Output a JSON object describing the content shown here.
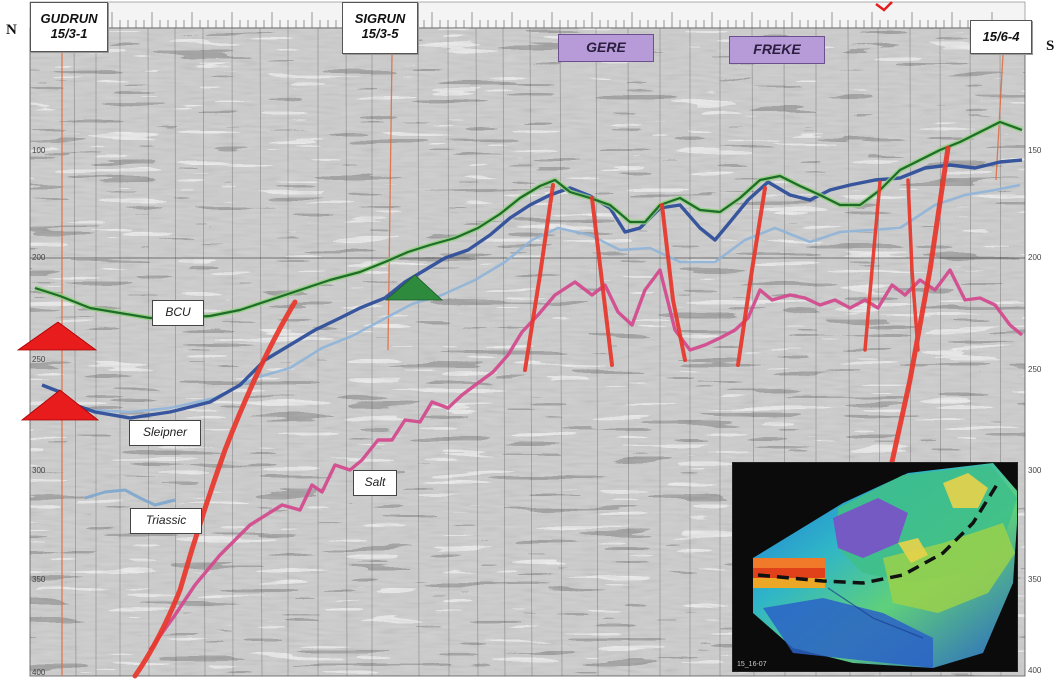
{
  "compass": {
    "north": "N",
    "south": "S"
  },
  "wells": [
    {
      "name": "GUDRUN",
      "id": "15/3-1"
    },
    {
      "name": "SIGRUN",
      "id": "15/3-5"
    },
    {
      "name": "",
      "id": "15/6-4"
    }
  ],
  "fields": [
    "GERE",
    "FREKE"
  ],
  "horizons": {
    "bcu": "BCU",
    "sleipner": "Sleipner",
    "triassic": "Triassic",
    "salt": "Salt"
  },
  "horizon_colors": {
    "bcu": "#1f6b2a",
    "bcu_highlight": "#8fd17a",
    "sleipner": "#2f4f9a",
    "sleipner_light": "#8fb4d8",
    "triassic": "#7fa8cc",
    "salt": "#d24b8e",
    "fault": "#e8362a",
    "well_track": "#e06a3c",
    "gas_marker": "#2e8b3e",
    "oil_marker": "#e81c1c"
  },
  "axis_ticks_left": [
    "100",
    "200",
    "250",
    "300",
    "350",
    "400"
  ],
  "axis_ticks_right": [
    "150",
    "200",
    "250",
    "300",
    "350",
    "400"
  ],
  "inset": {
    "caption": "15_16-07"
  }
}
